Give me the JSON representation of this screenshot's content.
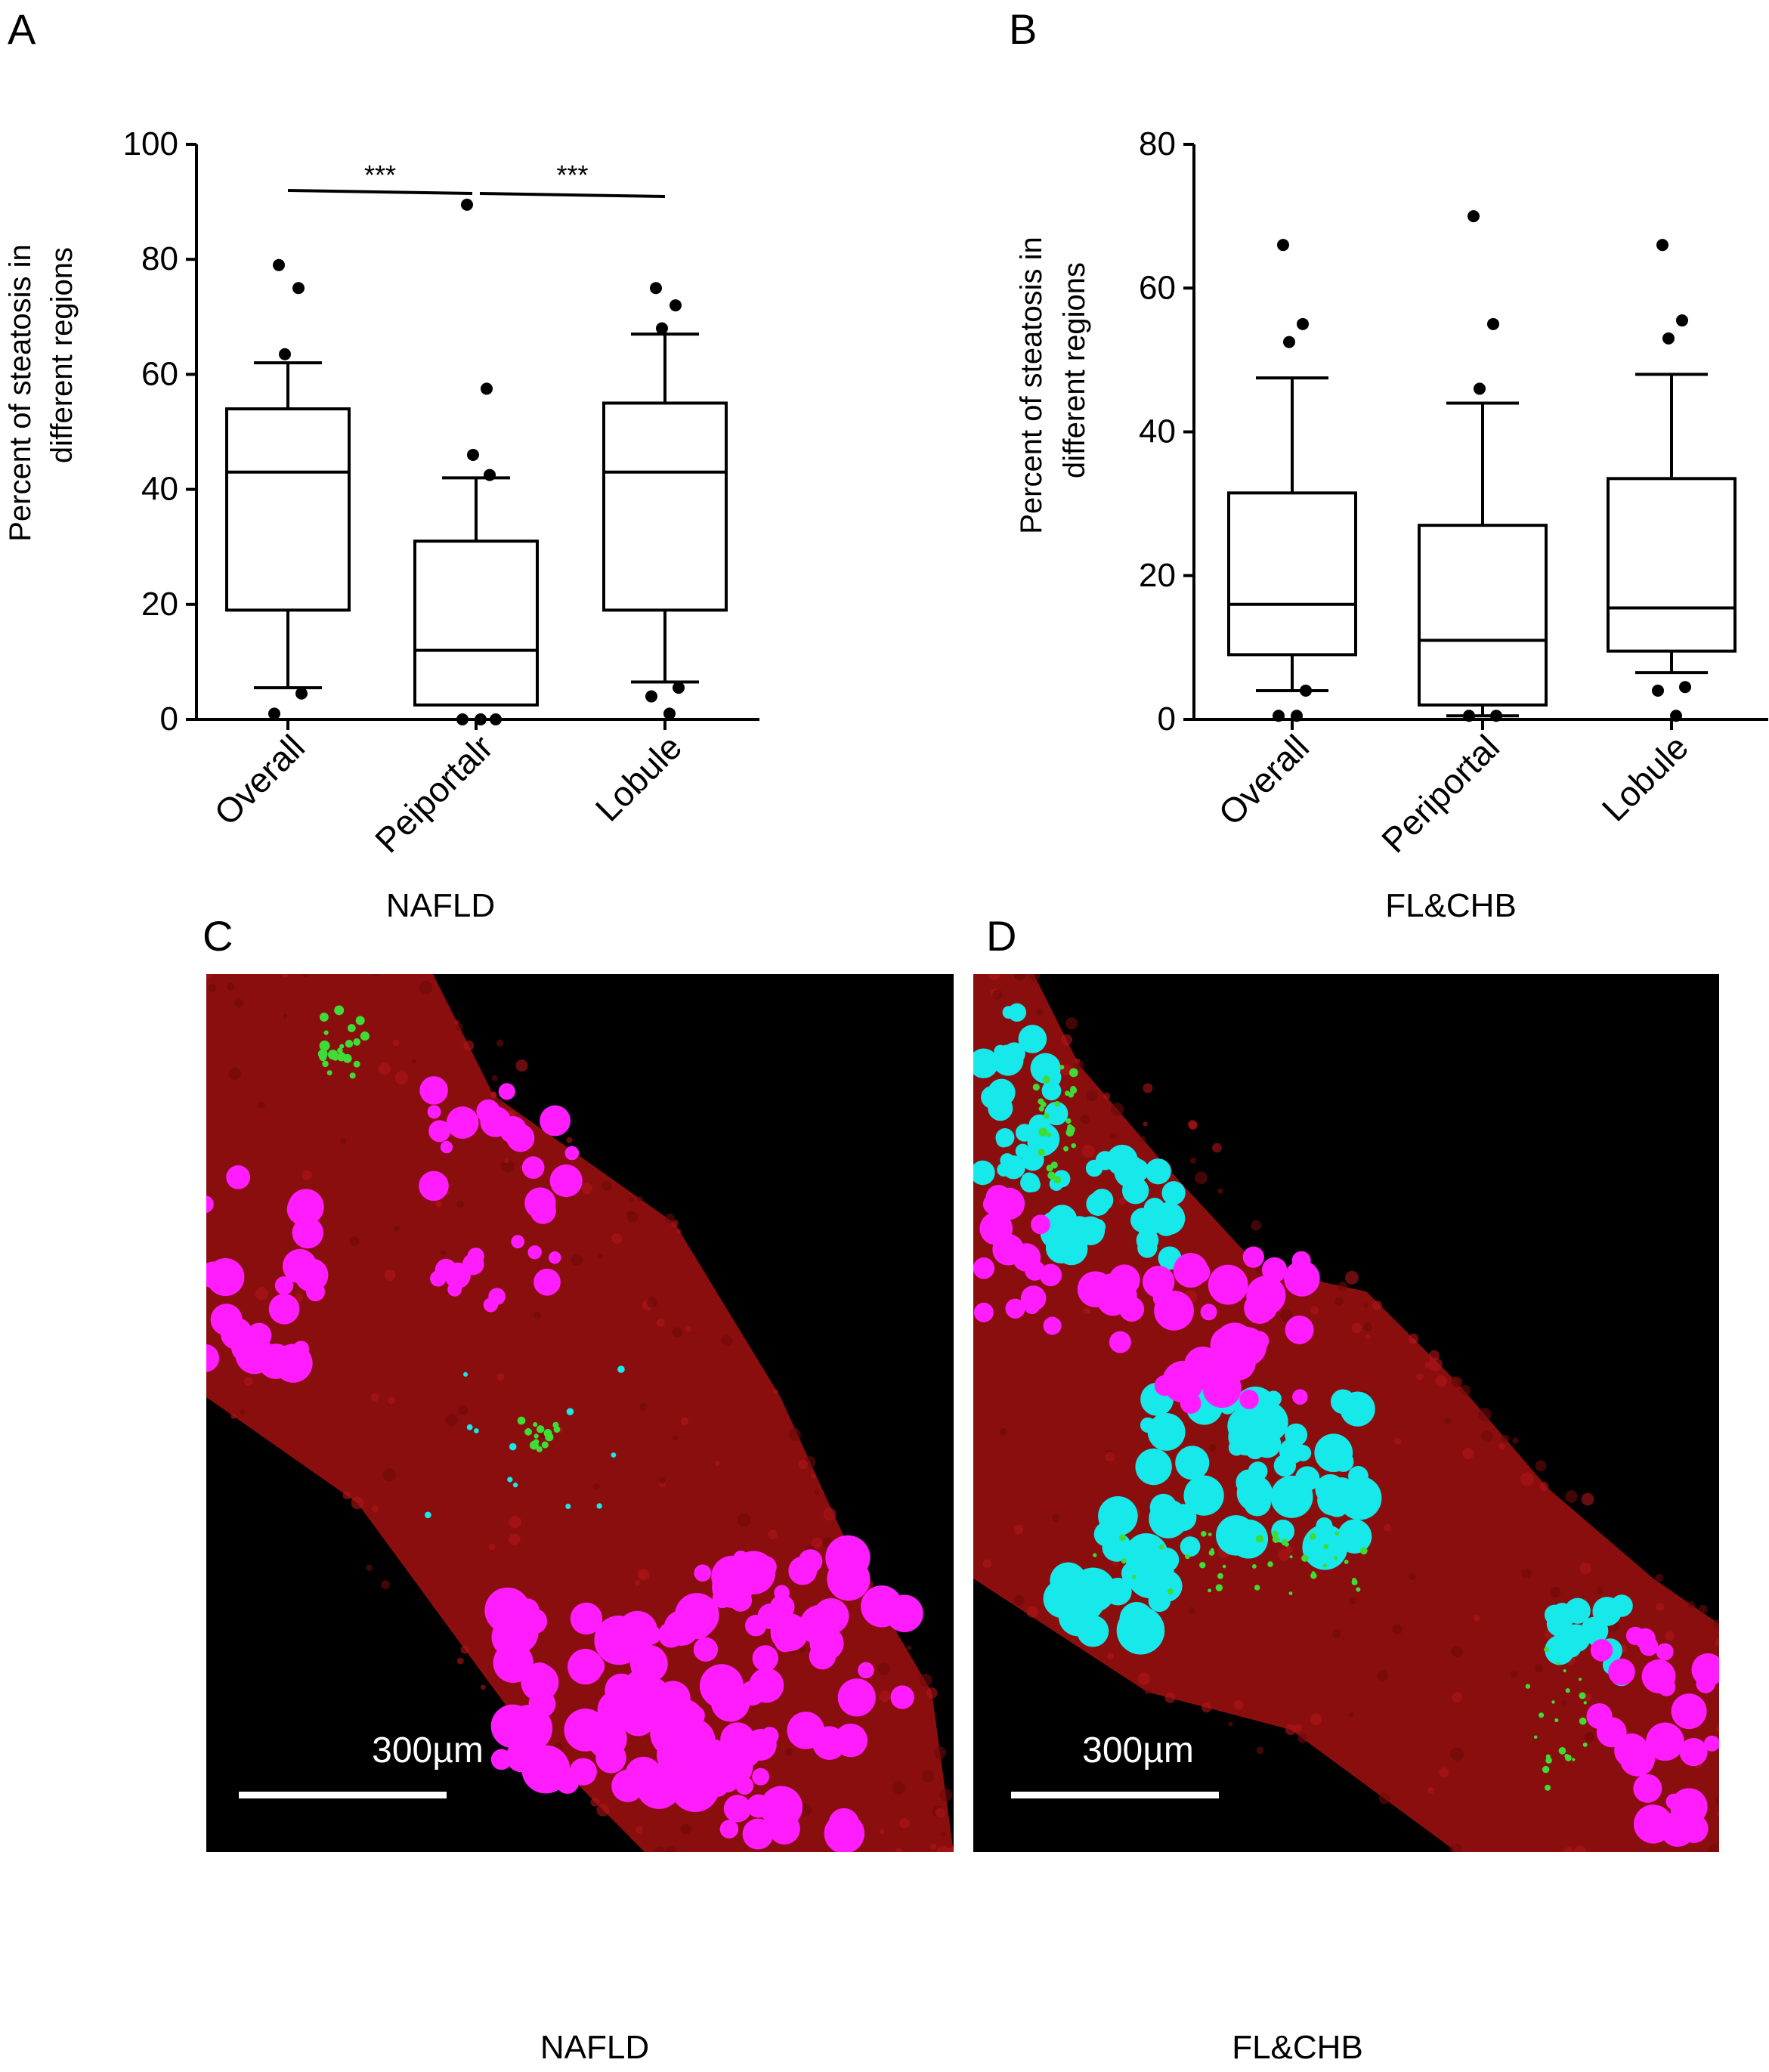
{
  "panels": {
    "a": "A",
    "b": "B",
    "c": "C",
    "d": "D"
  },
  "chart_data": [
    {
      "type": "box",
      "ylabel_line1": "Percent of steatosis in",
      "ylabel_line2": "different regions",
      "xlabel": "NAFLD",
      "ylim": [
        0,
        100
      ],
      "yticks": [
        "0",
        "20",
        "40",
        "60",
        "80",
        "100"
      ],
      "categories": [
        "Overall",
        "Peiportalr",
        "Lobule"
      ],
      "boxes": [
        {
          "q1": 19,
          "median": 43,
          "q3": 54,
          "whisker_low": 5.5,
          "whisker_high": 62,
          "outliers": [
            79,
            75,
            63.5,
            4.5,
            1
          ]
        },
        {
          "q1": 2.5,
          "median": 12,
          "q3": 31,
          "whisker_low": 2.5,
          "whisker_high": 42,
          "outliers": [
            89.5,
            57.5,
            46,
            42.5,
            0,
            0,
            0
          ]
        },
        {
          "q1": 19,
          "median": 43,
          "q3": 55,
          "whisker_low": 6.5,
          "whisker_high": 67,
          "outliers": [
            75,
            72,
            68,
            5.5,
            4,
            1
          ]
        }
      ],
      "significance": [
        {
          "from": 0,
          "to": 1,
          "label": "***"
        },
        {
          "from": 1,
          "to": 2,
          "label": "***"
        }
      ]
    },
    {
      "type": "box",
      "ylabel_line1": "Percent of steatosis in",
      "ylabel_line2": "different regions",
      "xlabel": "FL&CHB",
      "ylim": [
        0,
        80
      ],
      "yticks": [
        "0",
        "20",
        "40",
        "60",
        "80"
      ],
      "categories": [
        "Overall",
        "Periportal",
        "Lobule"
      ],
      "boxes": [
        {
          "q1": 9,
          "median": 16,
          "q3": 31.5,
          "whisker_low": 4,
          "whisker_high": 47.5,
          "outliers": [
            66,
            55,
            52.5,
            4,
            0.5,
            0.5
          ]
        },
        {
          "q1": 2,
          "median": 11,
          "q3": 27,
          "whisker_low": 0.5,
          "whisker_high": 44,
          "outliers": [
            70,
            55,
            46,
            0.5,
            0.5
          ]
        },
        {
          "q1": 9.5,
          "median": 15.5,
          "q3": 33.5,
          "whisker_low": 6.5,
          "whisker_high": 48,
          "outliers": [
            66,
            55.5,
            53,
            4.5,
            4,
            0.5
          ]
        }
      ]
    }
  ],
  "micrographs": {
    "c": {
      "scale_label": "300µm",
      "caption": "NAFLD"
    },
    "d": {
      "scale_label": "300µm",
      "caption": "FL&CHB"
    }
  },
  "colors": {
    "tissue_red": "#8a0e0e",
    "lipid_magenta": "#ff1dff",
    "cyan": "#17e8ea",
    "collagen_green": "#3fdc35"
  }
}
